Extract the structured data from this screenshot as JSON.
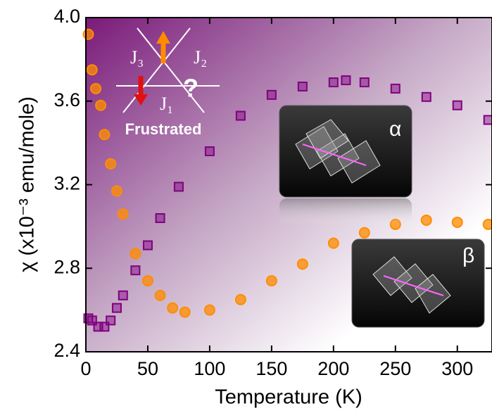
{
  "chart_data": {
    "type": "scatter",
    "xlabel": "Temperature (K)",
    "ylabel": "χ (x10⁻³ emu/mole)",
    "xlim": [
      0,
      328
    ],
    "ylim": [
      2.4,
      4.0
    ],
    "xticks": [
      0,
      50,
      100,
      150,
      200,
      250,
      300
    ],
    "yticks": [
      2.4,
      2.8,
      3.2,
      3.6,
      {
        "value": 4.0,
        "label": "4.0"
      }
    ],
    "series": [
      {
        "color": "#800080",
        "marker": "square",
        "x": [
          2,
          5,
          10,
          15,
          20,
          25,
          30,
          40,
          50,
          60,
          75,
          100,
          125,
          150,
          175,
          200,
          210,
          225,
          250,
          275,
          300,
          325
        ],
        "values": [
          2.56,
          2.55,
          2.52,
          2.52,
          2.55,
          2.61,
          2.67,
          2.79,
          2.91,
          3.04,
          3.19,
          3.36,
          3.53,
          3.63,
          3.67,
          3.69,
          3.7,
          3.69,
          3.66,
          3.62,
          3.58,
          3.51
        ]
      },
      {
        "color": "#ff8c00",
        "marker": "circle",
        "x": [
          2,
          5,
          8,
          12,
          15,
          20,
          25,
          30,
          40,
          50,
          60,
          70,
          80,
          100,
          125,
          150,
          175,
          200,
          225,
          250,
          275,
          300,
          325
        ],
        "values": [
          3.92,
          3.75,
          3.66,
          3.58,
          3.44,
          3.3,
          3.17,
          3.06,
          2.87,
          2.74,
          2.67,
          2.61,
          2.59,
          2.6,
          2.65,
          2.74,
          2.82,
          2.92,
          2.97,
          3.01,
          3.03,
          3.02,
          3.01
        ]
      }
    ],
    "annotations": [
      "J₃",
      "J₂",
      "J₁",
      "?",
      "Frustrated",
      "α",
      "β"
    ]
  }
}
